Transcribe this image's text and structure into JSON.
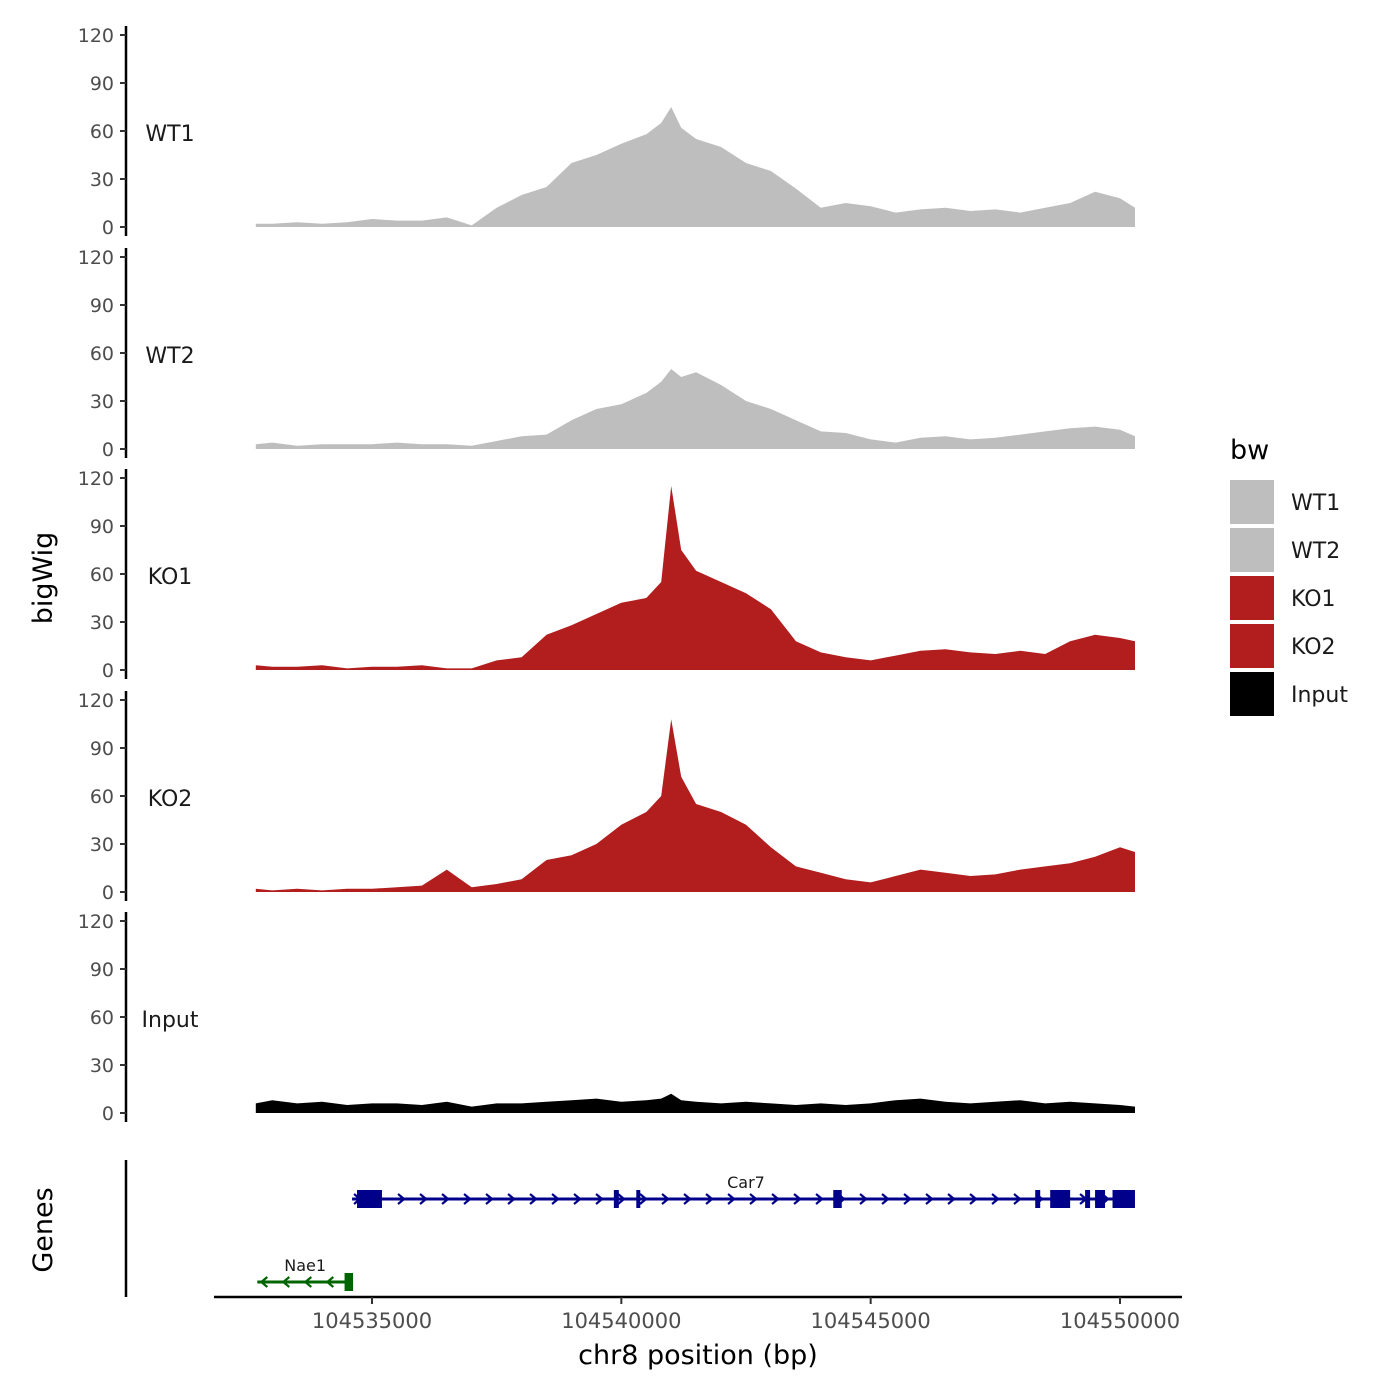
{
  "chart_data": {
    "type": "area",
    "ylabel": "bigWig",
    "xlabel": "chr8 position (bp)",
    "genes_label": "Genes",
    "x_ticks": [
      "104535000",
      "104540000",
      "104545000",
      "104550000"
    ],
    "x_tick_values": [
      104535000,
      104540000,
      104545000,
      104550000
    ],
    "xlim": [
      104532000,
      104551200
    ],
    "y_ticks": [
      "0",
      "30",
      "60",
      "90",
      "120"
    ],
    "y_tick_values": [
      0,
      30,
      60,
      90,
      120
    ],
    "ylim": [
      0,
      120
    ],
    "legend": {
      "title": "bw",
      "items": [
        {
          "label": "WT1",
          "color": "#bebebe"
        },
        {
          "label": "WT2",
          "color": "#bebebe"
        },
        {
          "label": "KO1",
          "color": "#b21e1e"
        },
        {
          "label": "KO2",
          "color": "#b21e1e"
        },
        {
          "label": "Input",
          "color": "#000000"
        }
      ]
    },
    "x": [
      104532670,
      104533000,
      104533500,
      104534000,
      104534500,
      104535000,
      104535500,
      104536000,
      104536500,
      104537000,
      104537500,
      104538000,
      104538500,
      104539000,
      104539500,
      104540000,
      104540500,
      104540800,
      104541000,
      104541200,
      104541500,
      104542000,
      104542500,
      104543000,
      104543500,
      104544000,
      104544500,
      104545000,
      104545500,
      104546000,
      104546500,
      104547000,
      104547500,
      104548000,
      104548500,
      104549000,
      104549500,
      104550000,
      104550300
    ],
    "series": [
      {
        "name": "WT1",
        "color": "#bebebe",
        "values": [
          2,
          2,
          3,
          2,
          3,
          5,
          4,
          4,
          6,
          1,
          12,
          20,
          25,
          40,
          45,
          52,
          58,
          65,
          75,
          62,
          55,
          50,
          40,
          35,
          24,
          12,
          15,
          13,
          9,
          11,
          12,
          10,
          11,
          9,
          12,
          15,
          22,
          18,
          12
        ]
      },
      {
        "name": "WT2",
        "color": "#bebebe",
        "values": [
          3,
          4,
          2,
          3,
          3,
          3,
          4,
          3,
          3,
          2,
          5,
          8,
          9,
          18,
          25,
          28,
          35,
          42,
          50,
          45,
          48,
          40,
          30,
          25,
          18,
          11,
          10,
          6,
          4,
          7,
          8,
          6,
          7,
          9,
          11,
          13,
          14,
          12,
          8
        ]
      },
      {
        "name": "KO1",
        "color": "#b21e1e",
        "values": [
          3,
          2,
          2,
          3,
          1,
          2,
          2,
          3,
          1,
          1,
          6,
          8,
          22,
          28,
          35,
          42,
          45,
          55,
          115,
          75,
          62,
          55,
          48,
          38,
          18,
          11,
          8,
          6,
          9,
          12,
          13,
          11,
          10,
          12,
          10,
          18,
          22,
          20,
          18
        ]
      },
      {
        "name": "KO2",
        "color": "#b21e1e",
        "values": [
          2,
          1,
          2,
          1,
          2,
          2,
          3,
          4,
          14,
          3,
          5,
          8,
          20,
          23,
          30,
          42,
          50,
          60,
          108,
          72,
          55,
          50,
          42,
          28,
          16,
          12,
          8,
          6,
          10,
          14,
          12,
          10,
          11,
          14,
          16,
          18,
          22,
          28,
          25
        ]
      },
      {
        "name": "Input",
        "color": "#000000",
        "values": [
          6,
          8,
          6,
          7,
          5,
          6,
          6,
          5,
          7,
          4,
          6,
          6,
          7,
          8,
          9,
          7,
          8,
          9,
          12,
          8,
          7,
          6,
          7,
          6,
          5,
          6,
          5,
          6,
          8,
          9,
          7,
          6,
          7,
          8,
          6,
          7,
          6,
          5,
          4
        ]
      }
    ],
    "genes": [
      {
        "name": "Car7",
        "strand": "+",
        "color": "#00008b",
        "start": 104534600,
        "end": 104550300,
        "exons": [
          [
            104534700,
            104535200
          ],
          [
            104539850,
            104539950
          ],
          [
            104540300,
            104540380
          ],
          [
            104544250,
            104544420
          ],
          [
            104548300,
            104548400
          ],
          [
            104548600,
            104549000
          ],
          [
            104549300,
            104549400
          ],
          [
            104549500,
            104549700
          ],
          [
            104549850,
            104550300
          ]
        ]
      },
      {
        "name": "Nae1",
        "strand": "-",
        "color": "#006400",
        "start": 104532700,
        "end": 104534620,
        "exons": [
          [
            104534450,
            104534620
          ]
        ]
      }
    ]
  }
}
